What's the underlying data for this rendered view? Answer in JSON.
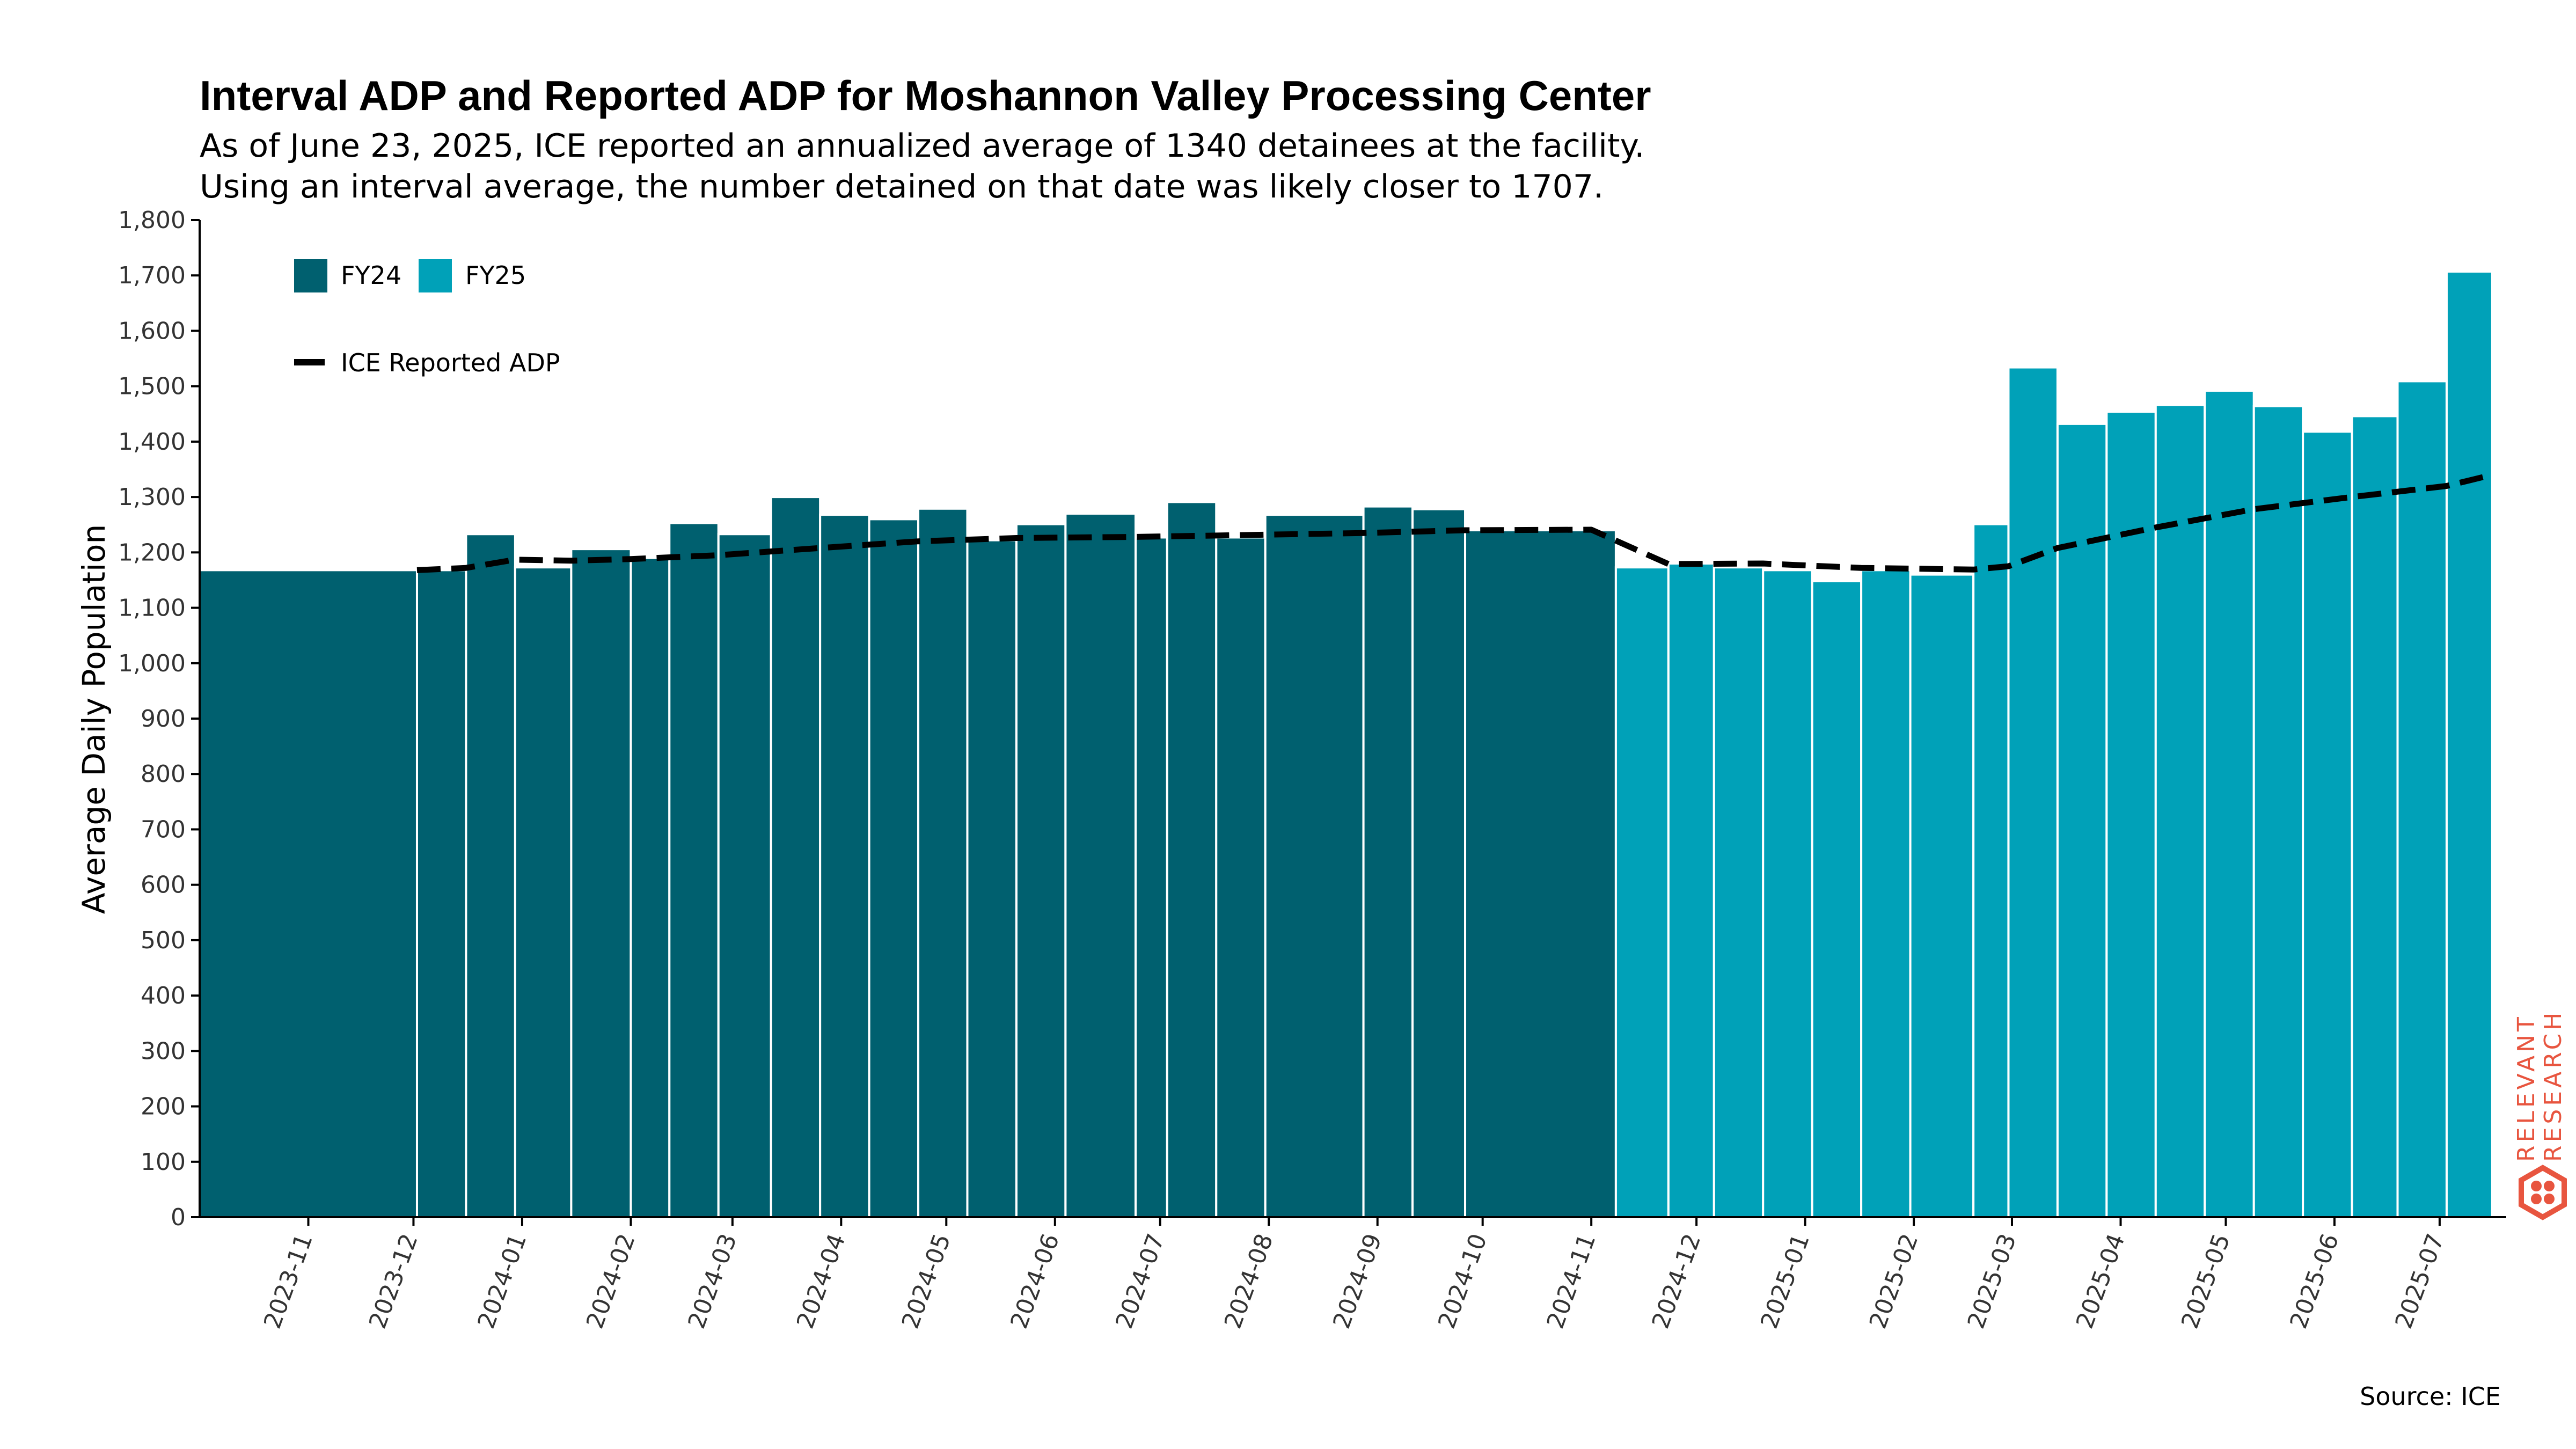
{
  "chart_data": {
    "type": "bar",
    "title": "Interval ADP and Reported ADP for Moshannon Valley Processing Center",
    "subtitle_lines": [
      "As of June 23, 2025, ICE reported an annualized average of 1340 detainees at the facility.",
      "Using an interval average, the number detained on that date was likely closer to 1707."
    ],
    "ylabel": "Average Daily Population",
    "ylim": [
      0,
      1800
    ],
    "y_ticks": [
      0,
      100,
      200,
      300,
      400,
      500,
      600,
      700,
      800,
      900,
      1000,
      1100,
      1200,
      1300,
      1400,
      1500,
      1600,
      1700,
      1800
    ],
    "y_tick_labels": [
      "0",
      "100",
      "200",
      "300",
      "400",
      "500",
      "600",
      "700",
      "800",
      "900",
      "1,000",
      "1,100",
      "1,200",
      "1,300",
      "1,400",
      "1,500",
      "1,600",
      "1,700",
      "1,800"
    ],
    "x_ticks": [
      "2023-11-01",
      "2023-12-01",
      "2024-01-01",
      "2024-02-01",
      "2024-03-01",
      "2024-04-01",
      "2024-05-01",
      "2024-06-01",
      "2024-07-01",
      "2024-08-01",
      "2024-09-01",
      "2024-10-01",
      "2024-11-01",
      "2024-12-01",
      "2025-01-01",
      "2025-02-01",
      "2025-03-01",
      "2025-04-01",
      "2025-05-01",
      "2025-06-01",
      "2025-07-01"
    ],
    "x_tick_labels": [
      "2023-11",
      "2023-12",
      "2024-01",
      "2024-02",
      "2024-03",
      "2024-04",
      "2024-05",
      "2024-06",
      "2024-07",
      "2024-08",
      "2024-09",
      "2024-10",
      "2024-11",
      "2024-12",
      "2025-01",
      "2025-02",
      "2025-03",
      "2025-04",
      "2025-05",
      "2025-06",
      "2025-07"
    ],
    "x_range": [
      "2023-10-01",
      "2025-07-20"
    ],
    "series": [
      {
        "name": "FY24",
        "color": "#00606f",
        "bars": [
          {
            "start": "2023-10-01",
            "end": "2023-12-02",
            "value": 1168
          },
          {
            "start": "2023-12-02",
            "end": "2023-12-16",
            "value": 1168
          },
          {
            "start": "2023-12-16",
            "end": "2023-12-30",
            "value": 1233
          },
          {
            "start": "2023-12-30",
            "end": "2024-01-15",
            "value": 1173
          },
          {
            "start": "2024-01-15",
            "end": "2024-02-01",
            "value": 1206
          },
          {
            "start": "2024-02-01",
            "end": "2024-02-12",
            "value": 1190
          },
          {
            "start": "2024-02-12",
            "end": "2024-02-26",
            "value": 1253
          },
          {
            "start": "2024-02-26",
            "end": "2024-03-12",
            "value": 1233
          },
          {
            "start": "2024-03-12",
            "end": "2024-03-26",
            "value": 1300
          },
          {
            "start": "2024-03-26",
            "end": "2024-04-09",
            "value": 1268
          },
          {
            "start": "2024-04-09",
            "end": "2024-04-23",
            "value": 1260
          },
          {
            "start": "2024-04-23",
            "end": "2024-05-07",
            "value": 1279
          },
          {
            "start": "2024-05-07",
            "end": "2024-05-21",
            "value": 1222
          },
          {
            "start": "2024-05-21",
            "end": "2024-06-04",
            "value": 1251
          },
          {
            "start": "2024-06-04",
            "end": "2024-06-24",
            "value": 1270
          },
          {
            "start": "2024-06-24",
            "end": "2024-07-03",
            "value": 1227
          },
          {
            "start": "2024-07-03",
            "end": "2024-07-17",
            "value": 1291
          },
          {
            "start": "2024-07-17",
            "end": "2024-07-31",
            "value": 1227
          },
          {
            "start": "2024-07-31",
            "end": "2024-08-28",
            "value": 1268
          },
          {
            "start": "2024-08-28",
            "end": "2024-09-11",
            "value": 1283
          },
          {
            "start": "2024-09-11",
            "end": "2024-09-26",
            "value": 1278
          },
          {
            "start": "2024-09-26",
            "end": "2024-11-08",
            "value": 1240
          }
        ]
      },
      {
        "name": "FY25",
        "color": "#00a1b8",
        "bars": [
          {
            "start": "2024-11-08",
            "end": "2024-11-23",
            "value": 1173
          },
          {
            "start": "2024-11-23",
            "end": "2024-12-06",
            "value": 1180
          },
          {
            "start": "2024-12-06",
            "end": "2024-12-20",
            "value": 1173
          },
          {
            "start": "2024-12-20",
            "end": "2025-01-03",
            "value": 1168
          },
          {
            "start": "2025-01-03",
            "end": "2025-01-17",
            "value": 1148
          },
          {
            "start": "2025-01-17",
            "end": "2025-01-31",
            "value": 1168
          },
          {
            "start": "2025-01-31",
            "end": "2025-02-18",
            "value": 1160
          },
          {
            "start": "2025-02-18",
            "end": "2025-02-28",
            "value": 1251
          },
          {
            "start": "2025-02-28",
            "end": "2025-03-14",
            "value": 1534
          },
          {
            "start": "2025-03-14",
            "end": "2025-03-28",
            "value": 1432
          },
          {
            "start": "2025-03-28",
            "end": "2025-04-11",
            "value": 1454
          },
          {
            "start": "2025-04-11",
            "end": "2025-04-25",
            "value": 1466
          },
          {
            "start": "2025-04-25",
            "end": "2025-05-09",
            "value": 1492
          },
          {
            "start": "2025-05-09",
            "end": "2025-05-23",
            "value": 1464
          },
          {
            "start": "2025-05-23",
            "end": "2025-06-06",
            "value": 1418
          },
          {
            "start": "2025-06-06",
            "end": "2025-06-19",
            "value": 1446
          },
          {
            "start": "2025-06-19",
            "end": "2025-07-03",
            "value": 1509
          },
          {
            "start": "2025-07-03",
            "end": "2025-07-16",
            "value": 1707
          }
        ]
      }
    ],
    "line_series": {
      "name": "ICE Reported ADP",
      "color": "#000000",
      "style": "dashed",
      "points": [
        {
          "date": "2023-12-02",
          "value": 1168
        },
        {
          "date": "2023-12-16",
          "value": 1172
        },
        {
          "date": "2023-12-30",
          "value": 1187
        },
        {
          "date": "2024-01-15",
          "value": 1185
        },
        {
          "date": "2024-02-01",
          "value": 1188
        },
        {
          "date": "2024-02-26",
          "value": 1195
        },
        {
          "date": "2024-03-26",
          "value": 1208
        },
        {
          "date": "2024-04-23",
          "value": 1220
        },
        {
          "date": "2024-05-21",
          "value": 1226
        },
        {
          "date": "2024-06-24",
          "value": 1228
        },
        {
          "date": "2024-07-31",
          "value": 1232
        },
        {
          "date": "2024-08-28",
          "value": 1235
        },
        {
          "date": "2024-09-26",
          "value": 1240
        },
        {
          "date": "2024-11-01",
          "value": 1241
        },
        {
          "date": "2024-11-23",
          "value": 1179
        },
        {
          "date": "2024-12-20",
          "value": 1180
        },
        {
          "date": "2025-01-17",
          "value": 1172
        },
        {
          "date": "2025-02-18",
          "value": 1169
        },
        {
          "date": "2025-02-28",
          "value": 1175
        },
        {
          "date": "2025-03-14",
          "value": 1208
        },
        {
          "date": "2025-04-11",
          "value": 1245
        },
        {
          "date": "2025-05-09",
          "value": 1278
        },
        {
          "date": "2025-06-06",
          "value": 1300
        },
        {
          "date": "2025-07-03",
          "value": 1320
        },
        {
          "date": "2025-07-16",
          "value": 1340
        }
      ]
    },
    "legend": {
      "placement": "top-left",
      "items": [
        "FY24",
        "FY25",
        "ICE Reported ADP"
      ]
    },
    "grid": false,
    "source": "Source: ICE",
    "logo_text": [
      "RELEVANT",
      "RESEARCH"
    ]
  }
}
